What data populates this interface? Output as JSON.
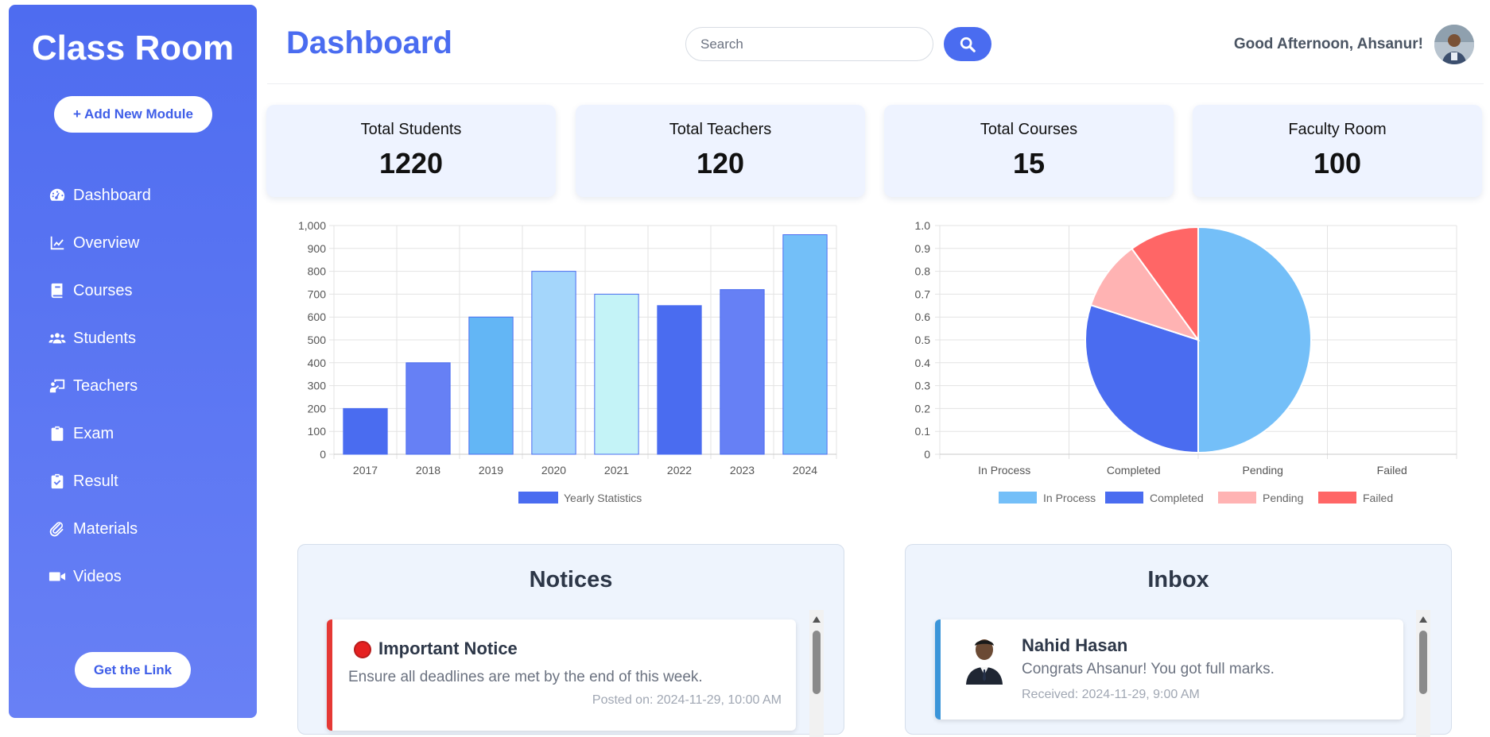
{
  "sidebar": {
    "brand": "Class Room",
    "add_button": "+ Add New Module",
    "items": [
      {
        "label": "Dashboard",
        "icon": "gauge-icon"
      },
      {
        "label": "Overview",
        "icon": "line-chart-icon"
      },
      {
        "label": "Courses",
        "icon": "book-icon"
      },
      {
        "label": "Students",
        "icon": "users-icon"
      },
      {
        "label": "Teachers",
        "icon": "teacher-icon"
      },
      {
        "label": "Exam",
        "icon": "clipboard-icon"
      },
      {
        "label": "Result",
        "icon": "clipboard-check-icon"
      },
      {
        "label": "Materials",
        "icon": "paperclip-icon"
      },
      {
        "label": "Videos",
        "icon": "video-icon"
      }
    ],
    "link_button": "Get the Link"
  },
  "header": {
    "title": "Dashboard",
    "search_placeholder": "Search",
    "greeting": "Good Afternoon, Ahsanur!"
  },
  "stats": [
    {
      "label": "Total Students",
      "value": "1220"
    },
    {
      "label": "Total Teachers",
      "value": "120"
    },
    {
      "label": "Total Courses",
      "value": "15"
    },
    {
      "label": "Faculty Room",
      "value": "100"
    }
  ],
  "chart_data": [
    {
      "type": "bar",
      "categories": [
        "2017",
        "2018",
        "2019",
        "2020",
        "2021",
        "2022",
        "2023",
        "2024"
      ],
      "series": [
        {
          "name": "Yearly Statistics",
          "values": [
            200,
            400,
            600,
            800,
            700,
            650,
            720,
            960
          ]
        }
      ],
      "bar_colors": [
        "#4a6cf0",
        "#6680f5",
        "#63b6f5",
        "#a4d6fb",
        "#c4f3f7",
        "#4a6cf0",
        "#6680f5",
        "#73bff8"
      ],
      "legend_color": "#4a6cf0",
      "ylim": [
        0,
        1000
      ],
      "yticks": [
        "0",
        "100",
        "200",
        "300",
        "400",
        "500",
        "600",
        "700",
        "800",
        "900",
        "1,000"
      ],
      "legend": "bottom",
      "grid": true
    },
    {
      "type": "pie",
      "labels": [
        "In Process",
        "Completed",
        "Pending",
        "Failed"
      ],
      "values": [
        50,
        30,
        10,
        10
      ],
      "colors": [
        "#74bff8",
        "#4a6cf0",
        "#ffb3b3",
        "#ff6666"
      ],
      "yticks": [
        "0",
        "0.1",
        "0.2",
        "0.3",
        "0.4",
        "0.5",
        "0.6",
        "0.7",
        "0.8",
        "0.9",
        "1.0"
      ],
      "legend": "bottom",
      "grid": true
    }
  ],
  "notices": {
    "title": "Notices",
    "items": [
      {
        "title": "Important Notice",
        "body": "Ensure all deadlines are met by the end of this week.",
        "date": "Posted on: 2024-11-29, 10:00 AM"
      }
    ]
  },
  "inbox": {
    "title": "Inbox",
    "items": [
      {
        "name": "Nahid Hasan",
        "message": "Congrats Ahsanur! You got full marks.",
        "date": "Received: 2024-11-29, 9:00 AM"
      }
    ]
  }
}
